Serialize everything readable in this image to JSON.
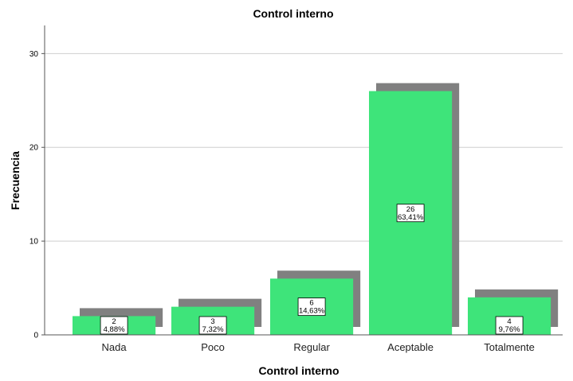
{
  "chart_data": {
    "type": "bar",
    "title": "Control interno",
    "xlabel": "Control interno",
    "ylabel": "Frecuencia",
    "categories": [
      "Nada",
      "Poco",
      "Regular",
      "Aceptable",
      "Totalmente"
    ],
    "values": [
      2,
      3,
      6,
      26,
      4
    ],
    "value_labels": [
      "2",
      "3",
      "6",
      "26",
      "4"
    ],
    "percent_labels": [
      "4,88%",
      "7,32%",
      "14,63%",
      "63,41%",
      "9,76%"
    ],
    "yticks": [
      "0",
      "10",
      "20",
      "30"
    ],
    "ylim": [
      0,
      33
    ],
    "grid": true,
    "bar_color": "#3ee47a",
    "shadow_color": "#808080"
  }
}
